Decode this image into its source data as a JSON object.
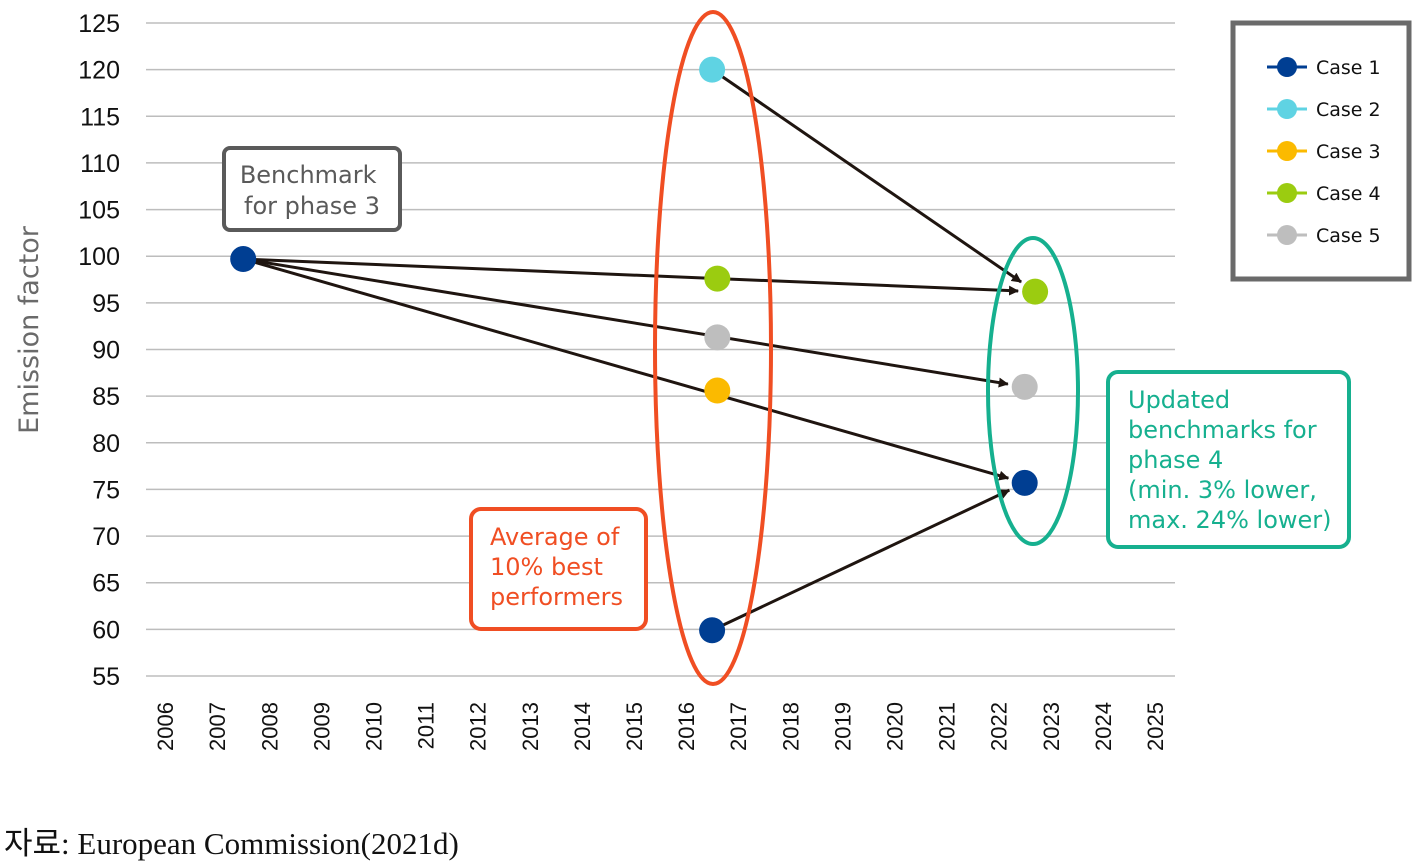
{
  "chart_data": {
    "type": "scatter",
    "title": "",
    "xlabel": "",
    "ylabel": "Emission factor",
    "xlim": [
      2006,
      2025
    ],
    "ylim": [
      55,
      125
    ],
    "x_ticks": [
      2006,
      2007,
      2008,
      2009,
      2010,
      2011,
      2012,
      2013,
      2014,
      2015,
      2016,
      2017,
      2018,
      2019,
      2020,
      2021,
      2022,
      2023,
      2024,
      2025
    ],
    "y_ticks": [
      55,
      60,
      65,
      70,
      75,
      80,
      85,
      90,
      95,
      100,
      105,
      110,
      115,
      120,
      125
    ],
    "grid": "horizontal",
    "legend_position": "top-right",
    "series": [
      {
        "name": "Case 1",
        "color": "#003e92",
        "points": [
          {
            "x": 2007.5,
            "y": 99.7
          },
          {
            "x": 2016.5,
            "y": 59.9
          },
          {
            "x": 2022.5,
            "y": 75.7
          }
        ]
      },
      {
        "name": "Case 2",
        "color": "#5fd3e3",
        "points": [
          {
            "x": 2016.5,
            "y": 120.0
          }
        ]
      },
      {
        "name": "Case 3",
        "color": "#fbba00",
        "points": [
          {
            "x": 2016.6,
            "y": 85.6
          }
        ]
      },
      {
        "name": "Case 4",
        "color": "#9bcc10",
        "points": [
          {
            "x": 2016.6,
            "y": 97.6
          },
          {
            "x": 2022.7,
            "y": 96.2
          }
        ]
      },
      {
        "name": "Case 5",
        "color": "#bebebe",
        "points": [
          {
            "x": 2016.6,
            "y": 91.3
          },
          {
            "x": 2022.5,
            "y": 86.0
          }
        ]
      }
    ],
    "arrows": [
      {
        "from": [
          2007.5,
          99.7
        ],
        "to": [
          2022.7,
          96.2
        ]
      },
      {
        "from": [
          2007.5,
          99.7
        ],
        "to": [
          2022.5,
          86.0
        ]
      },
      {
        "from": [
          2007.5,
          99.7
        ],
        "to": [
          2022.5,
          75.7
        ]
      },
      {
        "from": [
          2016.5,
          120.0
        ],
        "to": [
          2022.7,
          96.2
        ]
      },
      {
        "from": [
          2016.5,
          59.9
        ],
        "to": [
          2022.5,
          75.7
        ]
      }
    ],
    "annotations": {
      "phase3": {
        "lines": [
          "Benchmark",
          "for phase 3"
        ],
        "color": "#5a5a5a"
      },
      "best": {
        "lines": [
          "Average of",
          "10% best",
          "performers"
        ],
        "color": "#f04e23"
      },
      "phase4": {
        "lines": [
          "Updated",
          "benchmarks for",
          "phase 4",
          "(min. 3% lower,",
          "max. 24% lower)"
        ],
        "color": "#16b08f"
      }
    }
  },
  "source": "자료: European Commission(2021d)"
}
